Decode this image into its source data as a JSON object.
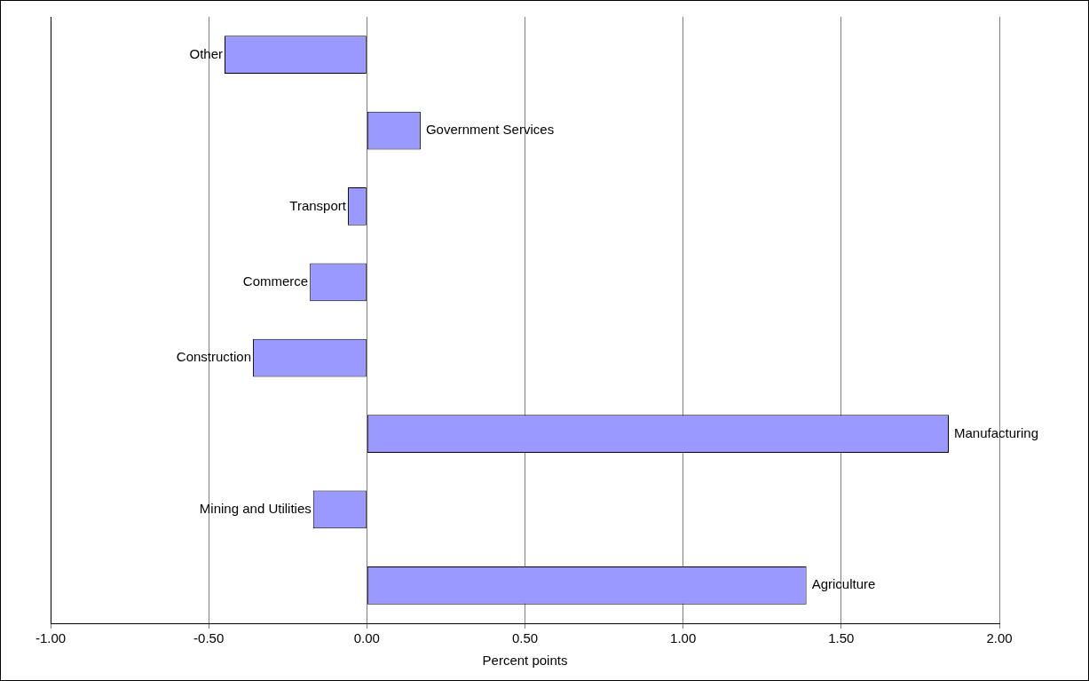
{
  "chart_data": {
    "type": "bar",
    "orientation": "horizontal",
    "xlabel": "Percent points",
    "categories": [
      "Other",
      "Government Services",
      "Transport",
      "Commerce",
      "Construction",
      "Manufacturing",
      "Mining and Utilities",
      "Agriculture"
    ],
    "values": [
      -0.45,
      0.17,
      -0.06,
      -0.18,
      -0.36,
      1.84,
      -0.17,
      1.39
    ],
    "color": "#9999ff",
    "xlim": [
      -1,
      2
    ],
    "xticks": [
      {
        "value": -1,
        "label": "-1.00"
      },
      {
        "value": -0.5,
        "label": "-0.50"
      },
      {
        "value": 0,
        "label": "0.00"
      },
      {
        "value": 0.5,
        "label": "0.50"
      },
      {
        "value": 1,
        "label": "1.00"
      },
      {
        "value": 1.5,
        "label": "1.50"
      },
      {
        "value": 2,
        "label": "2.00"
      }
    ],
    "grid": "x",
    "tick_labels": "x",
    "legend": false
  }
}
